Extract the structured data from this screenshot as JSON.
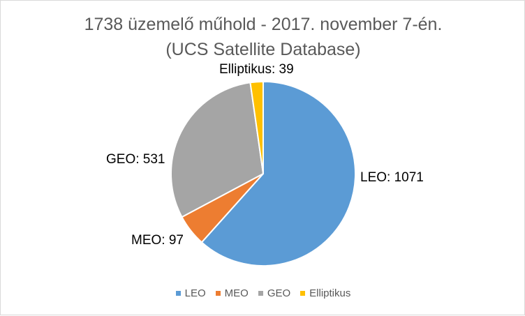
{
  "chart_data": {
    "type": "pie",
    "title": "1738 üzemelő műhold - 2017. november 7-én.",
    "subtitle": "(UCS Satellite Database)",
    "categories": [
      "LEO",
      "MEO",
      "GEO",
      "Elliptikus"
    ],
    "values": [
      1071,
      97,
      531,
      39
    ],
    "colors": [
      "#5b9bd5",
      "#ed7d31",
      "#a5a5a5",
      "#ffc000"
    ],
    "data_labels": [
      "LEO: 1071",
      "MEO: 97",
      "GEO: 531",
      "Elliptikus: 39"
    ],
    "legend_position": "bottom"
  }
}
